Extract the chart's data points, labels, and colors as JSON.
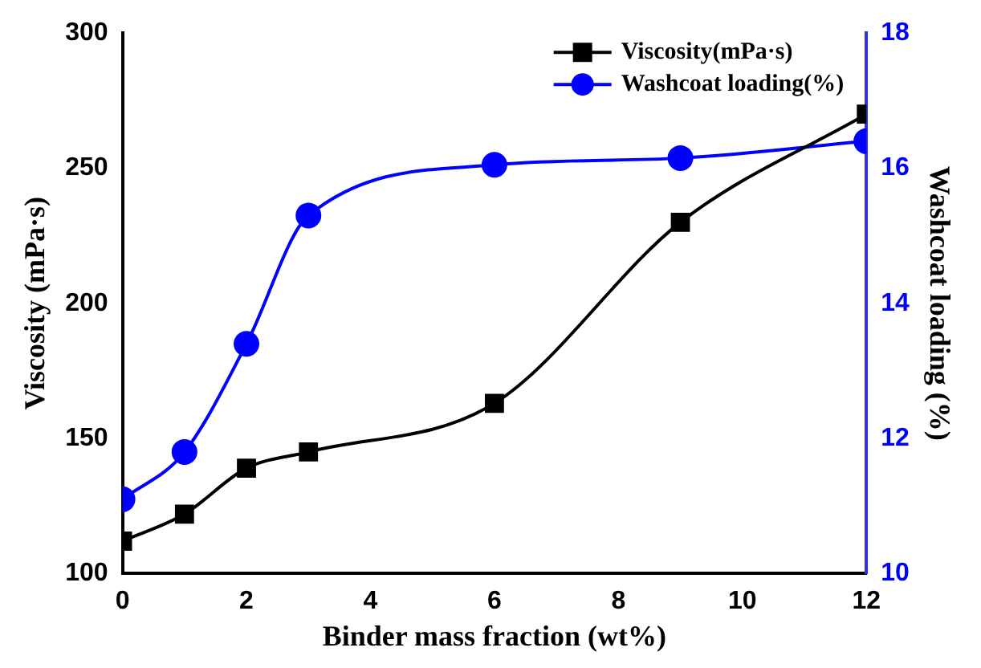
{
  "chart_data": {
    "type": "line",
    "xlabel": "Binder mass fraction (wt%)",
    "ylabel": "Viscosity (mPa·s)",
    "y2label": "Washcoat loading (%)",
    "x": [
      0,
      1,
      2,
      3,
      6,
      9,
      12
    ],
    "xlim": [
      0,
      12
    ],
    "xticks": [
      0,
      2,
      4,
      6,
      8,
      10,
      12
    ],
    "ylim": [
      100,
      300
    ],
    "yticks": [
      100,
      150,
      200,
      250,
      300
    ],
    "y2lim": [
      10,
      18
    ],
    "y2ticks": [
      10,
      12,
      14,
      16,
      18
    ],
    "series": [
      {
        "name": "Viscosity(mPa·s)",
        "color": "#000000",
        "marker": "square",
        "values": [
          112,
          122,
          139,
          145,
          163,
          230,
          270
        ]
      },
      {
        "name": "Washcoat loading(%)",
        "color": "#0000ff",
        "marker": "circle",
        "axis": "y2",
        "values": [
          11.1,
          11.8,
          13.4,
          15.3,
          16.05,
          16.15,
          16.4
        ]
      }
    ],
    "legend": "top right",
    "grid": false
  }
}
